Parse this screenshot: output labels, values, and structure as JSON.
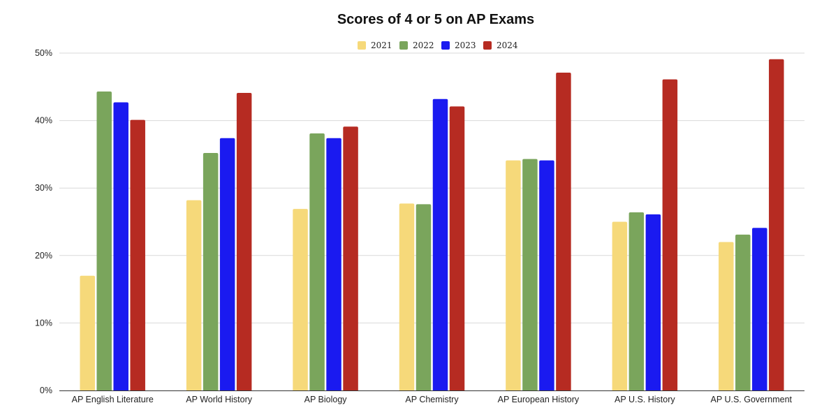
{
  "chart_data": {
    "type": "bar",
    "title": "Scores of 4 or 5 on AP Exams",
    "xlabel": "",
    "ylabel": "",
    "ylim": [
      0,
      50
    ],
    "yticks": [
      0,
      10,
      20,
      30,
      40,
      50
    ],
    "ytick_labels": [
      "0%",
      "10%",
      "20%",
      "30%",
      "40%",
      "50%"
    ],
    "grid": true,
    "legend_position": "top-center",
    "categories": [
      "AP English Literature",
      "AP World History",
      "AP Biology",
      "AP Chemistry",
      "AP European History",
      "AP U.S. History",
      "AP U.S. Government"
    ],
    "series": [
      {
        "name": "2021",
        "color": "#f6d97a",
        "values": [
          17,
          28.2,
          26.9,
          27.7,
          34.1,
          25.0,
          22.0
        ]
      },
      {
        "name": "2022",
        "color": "#7aa55c",
        "values": [
          44.3,
          35.2,
          38.1,
          27.6,
          34.3,
          26.4,
          23.1
        ]
      },
      {
        "name": "2023",
        "color": "#1a1af0",
        "values": [
          42.7,
          37.4,
          37.4,
          43.2,
          34.1,
          26.1,
          24.1
        ]
      },
      {
        "name": "2024",
        "color": "#b62b22",
        "values": [
          40.1,
          44.1,
          39.1,
          42.1,
          47.1,
          46.1,
          49.1
        ]
      }
    ]
  }
}
